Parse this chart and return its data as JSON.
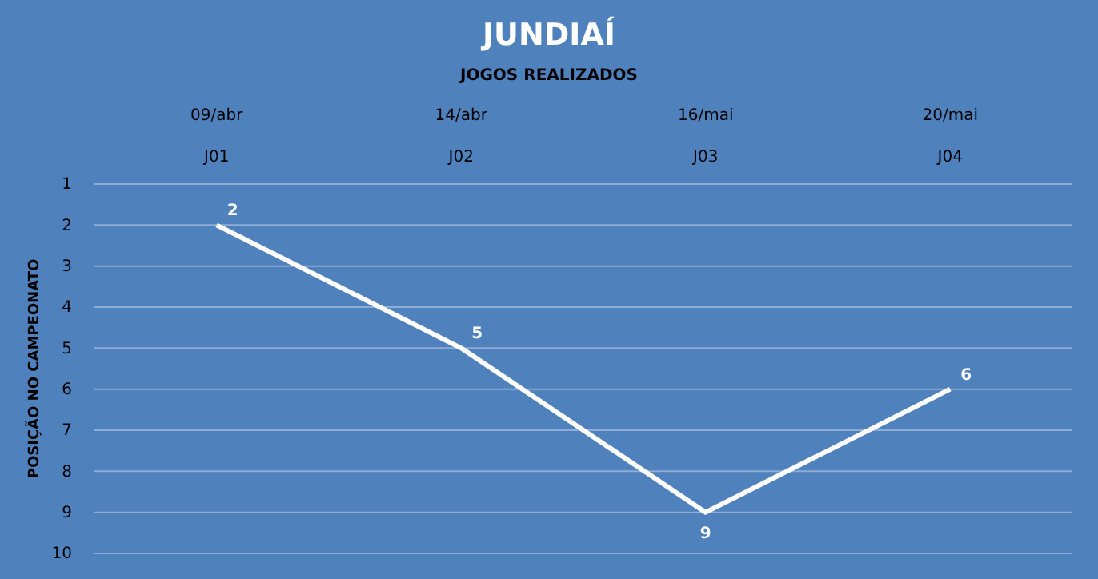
{
  "chart_data": {
    "type": "line",
    "title": "JUNDIAÍ",
    "subtitle": "JOGOS REALIZADOS",
    "ylabel": "POSIÇÃO NO CAMPEONATO",
    "categories": [
      "09/abr\nJ01",
      "14/abr\nJ02",
      "16/mai\nJ03",
      "20/mai\nJ04"
    ],
    "series": [
      {
        "color": "#ffffff",
        "values": [
          2,
          5,
          9,
          6
        ]
      }
    ],
    "ylim": [
      10,
      1
    ],
    "yticks": [
      1,
      2,
      3,
      4,
      5,
      6,
      7,
      8,
      9,
      10
    ],
    "grid": "y",
    "data_labels": true
  }
}
